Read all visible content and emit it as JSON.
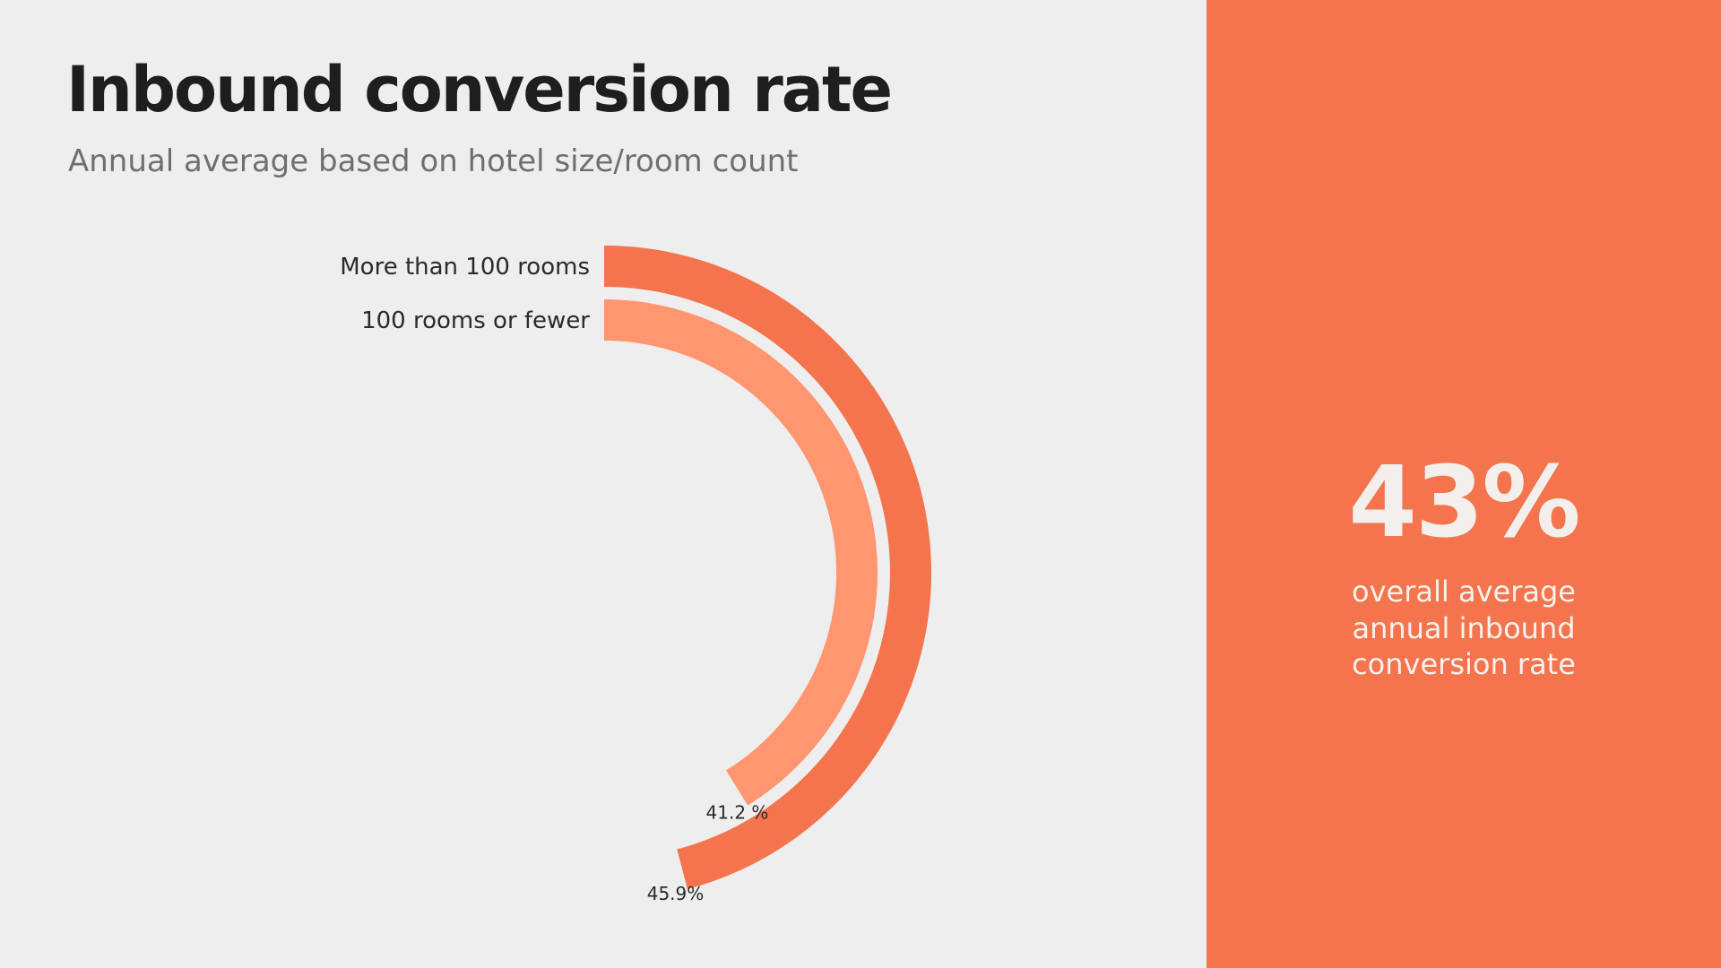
{
  "title": "Inbound conversion rate",
  "subtitle": "Annual average based on hotel size/room count",
  "chart_data": {
    "type": "radial-bar",
    "title": "Inbound conversion rate",
    "subtitle": "Annual average based on hotel size/room count",
    "unit": "%",
    "scale_max": 100,
    "series": [
      {
        "name": "More than 100 rooms",
        "value": 45.9,
        "value_label": "45.9%",
        "color": "#f4744e"
      },
      {
        "name": "100 rooms or fewer",
        "value": 41.2,
        "value_label": "41.2 %",
        "color": "#ff9670"
      }
    ]
  },
  "summary": {
    "value": "43%",
    "caption": "overall average annual inbound conversion rate"
  },
  "colors": {
    "background": "#eeeeee",
    "accent": "#f4744e",
    "accent_light": "#ff9670",
    "title": "#1e1e1e",
    "subtitle": "#6f6f6f"
  }
}
